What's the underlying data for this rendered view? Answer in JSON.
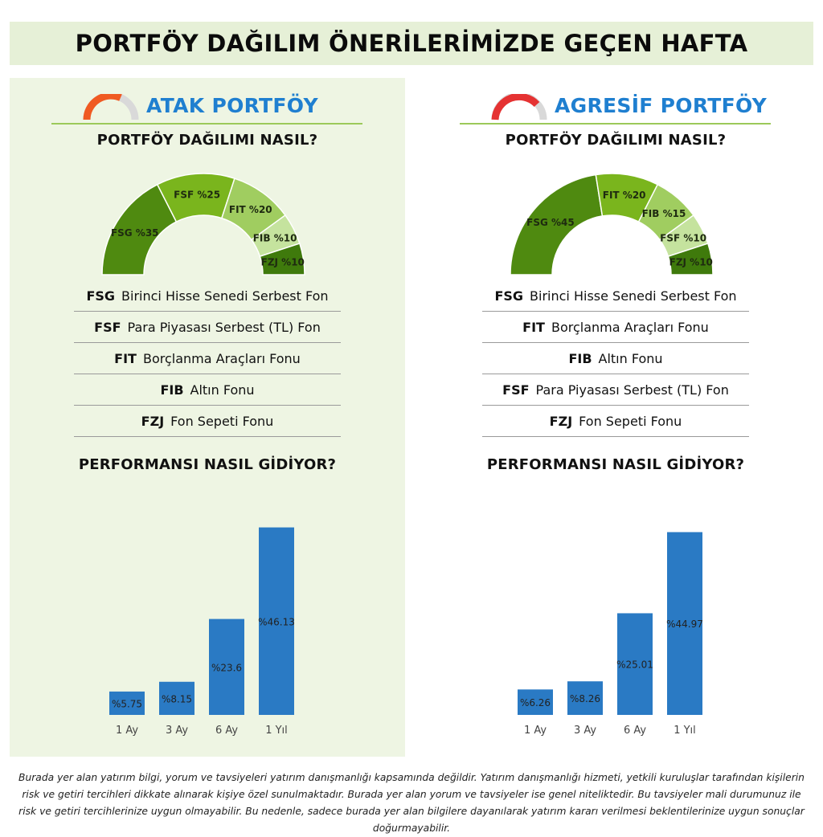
{
  "header": {
    "title": "PORTFÖY DAĞILIM ÖNERİLERİMİZDE GEÇEN HAFTA"
  },
  "colors": {
    "bar": "#2a7ac4",
    "title_blue": "#1f7fd0",
    "atak_gauge": "#f05a22",
    "agresif_gauge": "#e53232",
    "segment_greens": [
      "#4f8a10",
      "#7ab51d",
      "#a0cd60",
      "#c5e39e",
      "#3f7a0c"
    ]
  },
  "chart_data": [
    {
      "type": "pie",
      "title": "PORTFÖY DAĞILIMI NASIL?",
      "portfolio": "ATAK PORTFÖY",
      "categories": [
        "FSG",
        "FSF",
        "FIT",
        "FIB",
        "FZJ"
      ],
      "values": [
        35,
        25,
        20,
        10,
        10
      ],
      "data_labels": [
        "FSG %35",
        "FSF %25",
        "FIT %20",
        "FIB %10",
        "FZJ %10"
      ]
    },
    {
      "type": "bar",
      "title": "PERFORMANSI NASIL GİDİYOR?",
      "portfolio": "ATAK PORTFÖY",
      "categories": [
        "1 Ay",
        "3 Ay",
        "6 Ay",
        "1 Yıl"
      ],
      "values": [
        5.75,
        8.15,
        23.6,
        46.13
      ],
      "data_labels": [
        "%5.75",
        "%8.15",
        "%23.6",
        "%46.13"
      ],
      "ylim": [
        0,
        50
      ]
    },
    {
      "type": "pie",
      "title": "PORTFÖY DAĞILIMI NASIL?",
      "portfolio": "AGRESİF PORTFÖY",
      "categories": [
        "FSG",
        "FIT",
        "FIB",
        "FSF",
        "FZJ"
      ],
      "values": [
        45,
        20,
        15,
        10,
        10
      ],
      "data_labels": [
        "FSG %45",
        "FIT %20",
        "FIB %15",
        "FSF %10",
        "FZJ %10"
      ]
    },
    {
      "type": "bar",
      "title": "PERFORMANSI NASIL GİDİYOR?",
      "portfolio": "AGRESİF PORTFÖY",
      "categories": [
        "1 Ay",
        "3 Ay",
        "6 Ay",
        "1 Yıl"
      ],
      "values": [
        6.26,
        8.26,
        25.01,
        44.97
      ],
      "data_labels": [
        "%6.26",
        "%8.26",
        "%25.01",
        "%44.97"
      ],
      "ylim": [
        0,
        50
      ]
    }
  ],
  "panels": [
    {
      "title": "ATAK PORTFÖY",
      "gauge_icon": "gauge-icon",
      "dist_heading": "PORTFÖY DAĞILIMI NASIL?",
      "perf_heading": "PERFORMANSI NASIL GİDİYOR?",
      "legend": [
        {
          "code": "FSG",
          "name": "Birinci Hisse Senedi Serbest Fon"
        },
        {
          "code": "FSF",
          "name": "Para Piyasası Serbest (TL) Fon"
        },
        {
          "code": "FIT",
          "name": "Borçlanma Araçları Fonu"
        },
        {
          "code": "FIB",
          "name": "Altın Fonu"
        },
        {
          "code": "FZJ",
          "name": "Fon Sepeti Fonu"
        }
      ]
    },
    {
      "title": "AGRESİF PORTFÖY",
      "gauge_icon": "gauge-icon",
      "dist_heading": "PORTFÖY DAĞILIMI NASIL?",
      "perf_heading": "PERFORMANSI NASIL GİDİYOR?",
      "legend": [
        {
          "code": "FSG",
          "name": "Birinci Hisse Senedi Serbest Fon"
        },
        {
          "code": "FIT",
          "name": "Borçlanma Araçları Fonu"
        },
        {
          "code": "FIB",
          "name": "Altın Fonu"
        },
        {
          "code": "FSF",
          "name": "Para Piyasası Serbest (TL) Fon"
        },
        {
          "code": "FZJ",
          "name": "Fon Sepeti Fonu"
        }
      ]
    }
  ],
  "disclaimer": "Burada yer alan yatırım bilgi, yorum ve tavsiyeleri yatırım danışmanlığı kapsamında değildir. Yatırım danışmanlığı hizmeti, yetkili kuruluşlar tarafından kişilerin risk ve getiri tercihleri dikkate alınarak kişiye özel sunulmaktadır. Burada yer alan yorum ve tavsiyeler ise genel niteliktedir. Bu tavsiyeler mali durumunuz ile risk ve getiri tercihlerinize uygun olmayabilir. Bu nedenle, sadece burada yer alan bilgilere dayanılarak yatırım kararı verilmesi beklentilerinize uygun sonuçlar doğurmayabilir."
}
